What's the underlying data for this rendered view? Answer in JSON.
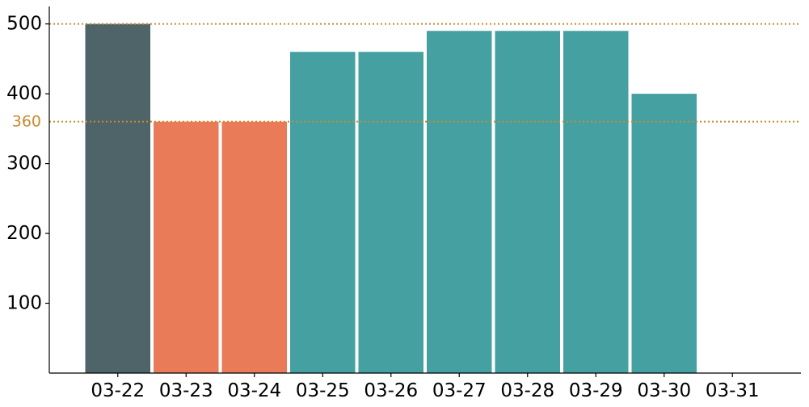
{
  "chart_data": {
    "type": "bar",
    "categories": [
      "03-22",
      "03-23",
      "03-24",
      "03-25",
      "03-26",
      "03-27",
      "03-28",
      "03-29",
      "03-30",
      "03-31"
    ],
    "values": [
      500,
      360,
      360,
      460,
      460,
      490,
      490,
      490,
      400,
      null
    ],
    "bar_colors": [
      "#4e6468",
      "#e97b59",
      "#e97b59",
      "#45a0a2",
      "#45a0a2",
      "#45a0a2",
      "#45a0a2",
      "#45a0a2",
      "#45a0a2",
      "#45a0a2"
    ],
    "ylim": [
      0,
      525
    ],
    "yticks": [
      100,
      200,
      300,
      400,
      500
    ],
    "reference_lines": [
      {
        "value": 500,
        "color": "#c98a2b",
        "style": "dotted",
        "label": ""
      },
      {
        "value": 360,
        "color": "#c98a2b",
        "style": "dotted",
        "label": "360"
      }
    ],
    "title": "",
    "xlabel": "",
    "ylabel": "",
    "grid": false,
    "legend": "none"
  }
}
